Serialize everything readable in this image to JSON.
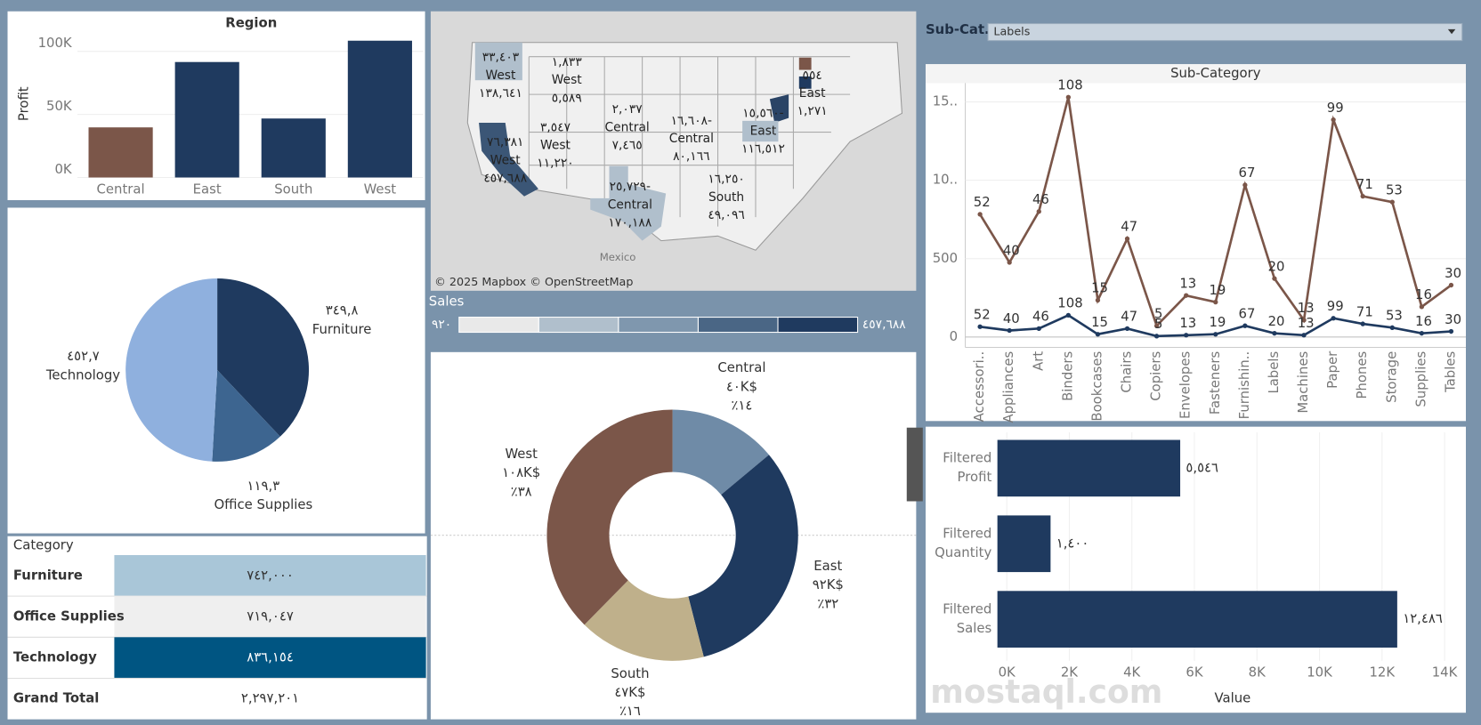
{
  "chart_data": [
    {
      "type": "bar",
      "title": "Region",
      "y_label": "Profit",
      "categories": [
        "Central",
        "East",
        "South",
        "West"
      ],
      "values": [
        39706,
        91523,
        46749,
        108418
      ],
      "colors": [
        "#7b5649",
        "#1f3a5f",
        "#1f3a5f",
        "#1f3a5f"
      ],
      "ylim": [
        0,
        110000
      ],
      "yticks": [
        {
          "value": 0,
          "label": "0K"
        },
        {
          "value": 50000,
          "label": "50K"
        },
        {
          "value": 100000,
          "label": "100K"
        }
      ],
      "grid": true
    },
    {
      "type": "pie",
      "categories": [
        "Furniture",
        "Office Supplies",
        "Technology"
      ],
      "values": [
        349.8,
        119.3,
        452.7
      ],
      "value_labels": [
        "٣٤٩,٨",
        "١١٩,٣",
        "٤٥٢,٧"
      ],
      "colors": [
        "#1f3a5f",
        "#3d6590",
        "#8fb0de"
      ]
    },
    {
      "type": "donut",
      "categories": [
        "Central",
        "East",
        "South",
        "West"
      ],
      "values": [
        40,
        92,
        47,
        108
      ],
      "value_labels": [
        "٤٠K$",
        "٩٢K$",
        "٤٧K$",
        "١٠٨K$"
      ],
      "percents": [
        14,
        32,
        16,
        38
      ],
      "percent_labels": [
        "٪١٤",
        "٪٣٢",
        "٪١٦",
        "٪٣٨"
      ],
      "colors": [
        "#6f8ba7",
        "#1f3a5f",
        "#bfb08b",
        "#7b5649"
      ]
    },
    {
      "type": "line",
      "title": "Sub-Category",
      "filter": {
        "label": "Sub-Cat..",
        "selected": "Labels"
      },
      "categories": [
        "Accessori..",
        "Appliances",
        "Art",
        "Binders",
        "Bookcases",
        "Chairs",
        "Copiers",
        "Envelopes",
        "Fasteners",
        "Furnishin..",
        "Labels",
        "Machines",
        "Paper",
        "Phones",
        "Storage",
        "Supplies",
        "Tables"
      ],
      "series": [
        {
          "color": "#7b5649",
          "values": [
            783,
            476,
            801,
            1530,
            235,
            627,
            72,
            265,
            223,
            970,
            373,
            108,
            1386,
            898,
            861,
            193,
            331
          ],
          "labels": [
            52,
            40,
            46,
            108,
            15,
            47,
            5,
            13,
            19,
            67,
            20,
            13,
            99,
            71,
            53,
            16,
            30
          ]
        },
        {
          "color": "#1f3a5f",
          "values": [
            66,
            42,
            54,
            139,
            18,
            54,
            6,
            12,
            18,
            72,
            24,
            12,
            120,
            84,
            60,
            24,
            36
          ],
          "labels": [
            52,
            40,
            46,
            108,
            15,
            47,
            5,
            13,
            19,
            67,
            20,
            13,
            99,
            71,
            53,
            16,
            30
          ]
        }
      ],
      "ylim": [
        -66,
        1620
      ],
      "yticks": [
        0,
        500,
        {
          "value": 1000,
          "label": "10.."
        },
        {
          "value": 1500,
          "label": "15.."
        }
      ],
      "grid": true
    },
    {
      "type": "hbar",
      "categories": [
        [
          "Filtered",
          "Profit"
        ],
        [
          "Filtered",
          "Quantity"
        ],
        [
          "Filtered",
          "Sales"
        ]
      ],
      "values": [
        5546,
        1400,
        12486
      ],
      "value_labels": [
        "٥,٥٤٦",
        "١,٤٠٠",
        "١٢,٤٨٦"
      ],
      "color": "#1f3a5f",
      "x_label": "Value",
      "xlim": [
        -300,
        14500
      ],
      "xticks": [
        {
          "value": 0,
          "label": "0K"
        },
        {
          "value": 2000,
          "label": "2K"
        },
        {
          "value": 4000,
          "label": "4K"
        },
        {
          "value": 6000,
          "label": "6K"
        },
        {
          "value": 8000,
          "label": "8K"
        },
        {
          "value": 10000,
          "label": "10K"
        },
        {
          "value": 12000,
          "label": "12K"
        },
        {
          "value": 14000,
          "label": "14K"
        }
      ],
      "grid": true
    }
  ],
  "map": {
    "labels": [
      [
        "٣٣,٤٠٣",
        "West",
        "١٣٨,٦٤١"
      ],
      [
        "١,٨٣٣",
        "West",
        "٥,٥٨٩"
      ],
      [
        "٣,٥٤٧",
        "West",
        "١١,٢٢٠"
      ],
      [
        "٧٦,٣٨١",
        "West",
        "٤٥٧,٦٨٨"
      ],
      [
        "٢,٠٣٧",
        "Central",
        "٧,٤٦٥"
      ],
      [
        "١٦,٦٠٨-",
        "Central",
        "٨٠,١٦٦"
      ],
      [
        "٢٥,٧٢٩-",
        "Central",
        "١٧٠,١٨٨"
      ],
      [
        "١٦,٢٥٠",
        "South",
        "٤٩,٠٩٦"
      ],
      [
        "١٥,٥٦٠-",
        "East",
        "١١٦,٥١٢"
      ],
      [
        "٥٥٤",
        "East",
        "١,٢٧١"
      ]
    ],
    "country": "Mexico",
    "attribution": "© 2025 Mapbox © OpenStreetMap",
    "legend": {
      "title": "Sales",
      "min": "٩٢٠",
      "max": "٤٥٧,٦٨٨",
      "colors": [
        "#e9e9e9",
        "#b0bfcc",
        "#7f97ae",
        "#4a6685",
        "#1f3a5f"
      ]
    }
  },
  "table": {
    "header": "Category",
    "rows": [
      [
        "Furniture",
        "٧٤٢,٠٠٠"
      ],
      [
        "Office Supplies",
        "٧١٩,٠٤٧"
      ],
      [
        "Technology",
        "٨٣٦,١٥٤"
      ]
    ],
    "colors": [
      "#a9c6d8",
      "#efefef",
      "#005582"
    ],
    "total": [
      "Grand Total",
      "٢,٢٩٧,٢٠١"
    ]
  },
  "watermark": "mostaql.com"
}
